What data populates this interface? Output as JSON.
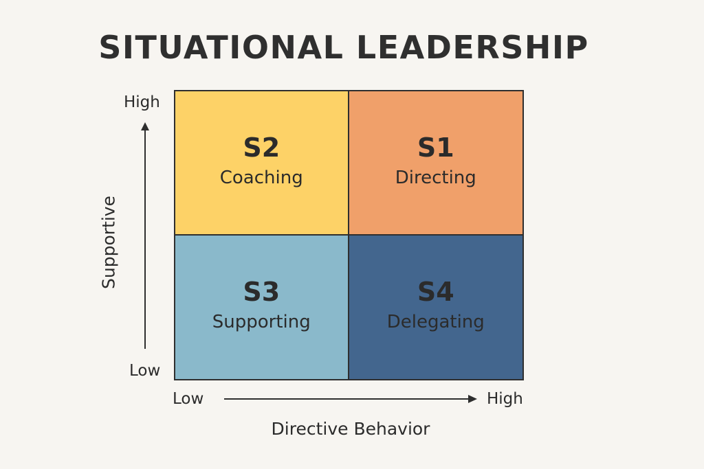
{
  "title": "SITUATIONAL LEADERSHIP",
  "axes": {
    "y_title": "Supportive",
    "y_high": "High",
    "y_low": "Low",
    "x_title": "Directive Behavior",
    "x_low": "Low",
    "x_high": "High"
  },
  "quadrants": [
    {
      "code": "S2",
      "name": "Coaching",
      "color": "#fdd267"
    },
    {
      "code": "S1",
      "name": "Directing",
      "color": "#f0a06a"
    },
    {
      "code": "S3",
      "name": "Supporting",
      "color": "#8ab9cb"
    },
    {
      "code": "S4",
      "name": "Delegating",
      "color": "#43668e"
    }
  ],
  "colors": {
    "background": "#f7f5f1",
    "text": "#2b2b2b",
    "lines": "#2e2e2e"
  }
}
